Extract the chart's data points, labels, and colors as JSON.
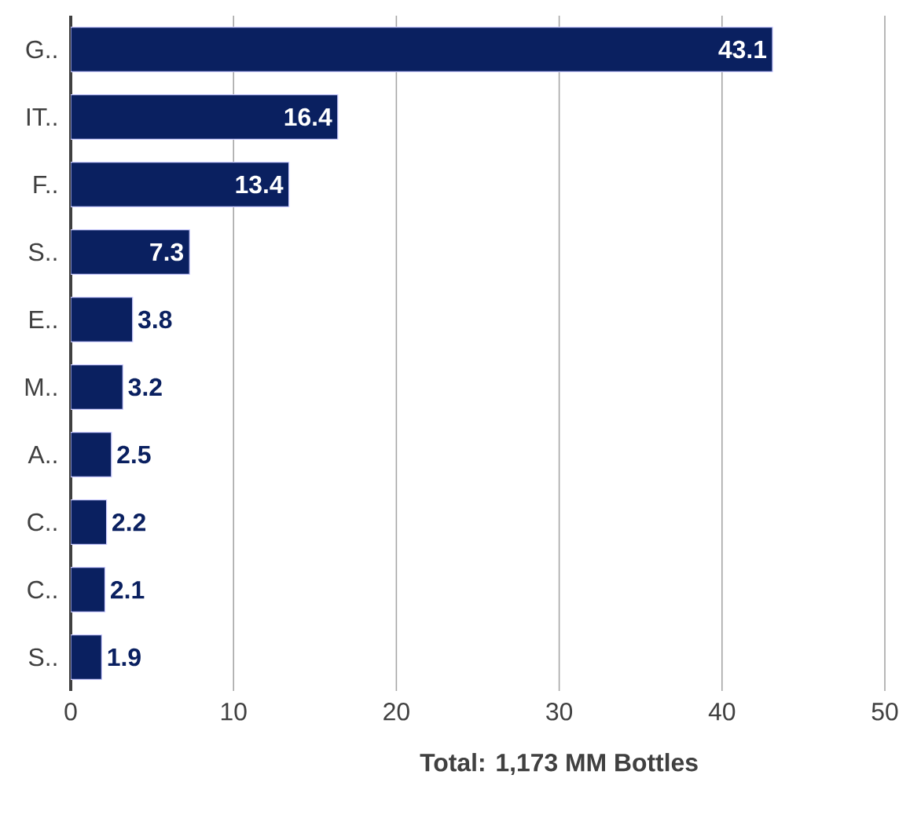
{
  "chart_data": {
    "type": "bar",
    "orientation": "horizontal",
    "xlabel": "Total: 1,173 MM Bottles",
    "categories": [
      "G..",
      "IT..",
      "F..",
      "S..",
      "E..",
      "M..",
      "A..",
      "C..",
      "C..",
      "S.."
    ],
    "values": [
      43.1,
      16.4,
      13.4,
      7.3,
      3.8,
      3.2,
      2.5,
      2.2,
      2.1,
      1.9
    ],
    "color": "#0a2060",
    "data_labels": true,
    "grid": "x",
    "xlim": [
      0,
      50
    ],
    "xticks": [
      0,
      10,
      20,
      30,
      40,
      50
    ]
  }
}
